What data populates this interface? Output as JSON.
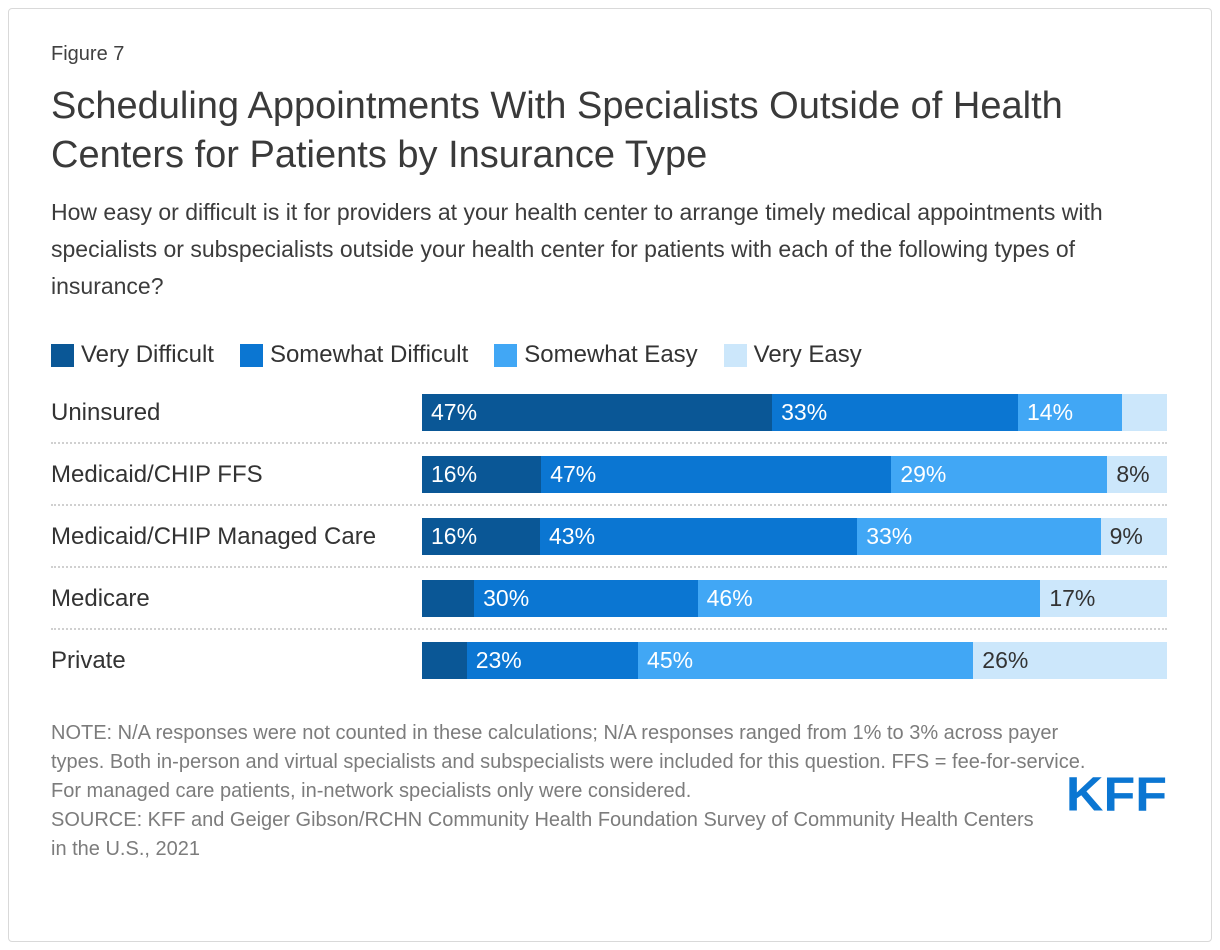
{
  "figure_label": "Figure 7",
  "title": "Scheduling Appointments With Specialists Outside of Health Centers for Patients by Insurance Type",
  "subtitle": "How easy or difficult is it for providers at your health center to arrange timely medical appointments with specialists or subspecialists outside your health center for patients with each of the following types of insurance?",
  "colors": {
    "very_difficult": "#0A5796",
    "somewhat_difficult": "#0B76D2",
    "somewhat_easy": "#41A7F5",
    "very_easy": "#CCE7FB",
    "label_on_dark": "#FFFFFF",
    "label_on_light": "#333333",
    "kff_blue": "#0B76D2"
  },
  "chart_data": {
    "type": "bar",
    "orientation": "horizontal-stacked",
    "title": "Scheduling Appointments With Specialists Outside of Health Centers for Patients by Insurance Type",
    "categories": [
      "Uninsured",
      "Medicaid/CHIP FFS",
      "Medicaid/CHIP Managed Care",
      "Medicare",
      "Private"
    ],
    "series": [
      {
        "name": "Very Difficult",
        "color": "#0A5796",
        "label_color": "#FFFFFF",
        "values": [
          47,
          16,
          16,
          7,
          6
        ]
      },
      {
        "name": "Somewhat Difficult",
        "color": "#0B76D2",
        "label_color": "#FFFFFF",
        "values": [
          33,
          47,
          43,
          30,
          23
        ]
      },
      {
        "name": "Somewhat Easy",
        "color": "#41A7F5",
        "label_color": "#FFFFFF",
        "values": [
          14,
          29,
          33,
          46,
          45
        ]
      },
      {
        "name": "Very Easy",
        "color": "#CCE7FB",
        "label_color": "#333333",
        "values": [
          6,
          8,
          9,
          17,
          26
        ]
      }
    ],
    "value_suffix": "%",
    "xlim": [
      0,
      100
    ],
    "label_min_display": 8,
    "legend_position": "top",
    "grid": false
  },
  "note": "NOTE: N/A responses were not counted in these calculations; N/A responses ranged from 1% to 3% across payer types. Both in-person and virtual specialists and subspecialists were included for this question. FFS = fee-for-service. For managed care patients, in-network specialists only were considered.",
  "source": "SOURCE: KFF and Geiger Gibson/RCHN Community Health Foundation Survey of Community Health Centers in the U.S., 2021",
  "logo": "KFF"
}
